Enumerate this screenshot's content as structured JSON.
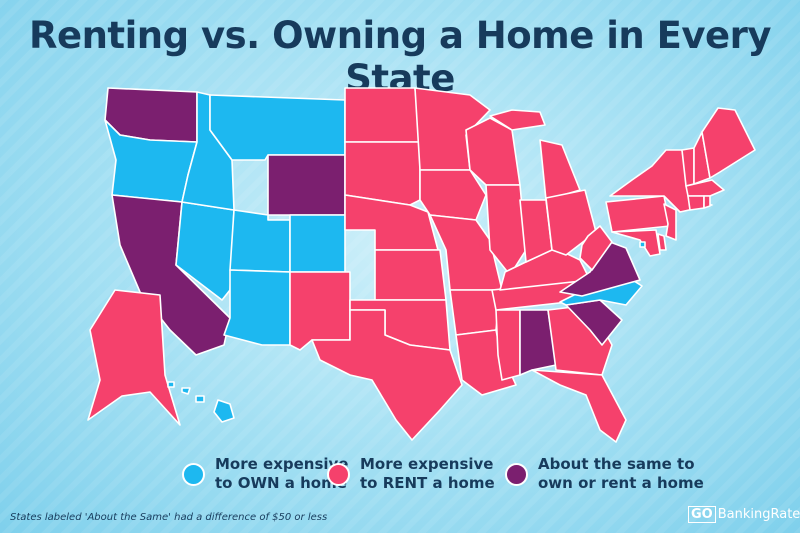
{
  "title": "Renting vs. Owning a Home in Every State",
  "colors": {
    "own": "#1db8f0",
    "rent": "#f5416c",
    "same": "#7b1f6f"
  },
  "legend": [
    {
      "key": "own",
      "label": "More expensive\nto OWN a home"
    },
    {
      "key": "rent",
      "label": "More expensive\nto RENT a home"
    },
    {
      "key": "same",
      "label": "About the same to\nown or rent a home"
    }
  ],
  "states": {
    "WA": "same",
    "OR": "own",
    "CA": "same",
    "NV": "own",
    "ID": "own",
    "MT": "own",
    "WY": "same",
    "UT": "own",
    "CO": "own",
    "AZ": "own",
    "NM": "rent",
    "ND": "rent",
    "SD": "rent",
    "NE": "rent",
    "KS": "rent",
    "OK": "rent",
    "TX": "rent",
    "MN": "rent",
    "IA": "rent",
    "MO": "rent",
    "AR": "rent",
    "LA": "rent",
    "WI": "rent",
    "IL": "rent",
    "MS": "rent",
    "AL": "same",
    "TN": "rent",
    "KY": "rent",
    "IN": "rent",
    "MI": "rent",
    "MI_UP": "rent",
    "OH": "rent",
    "GA": "rent",
    "FL": "rent",
    "SC": "same",
    "NC": "own",
    "VA": "same",
    "WV": "rent",
    "PA": "rent",
    "NY": "rent",
    "NJ": "rent",
    "DE": "rent",
    "MD": "rent",
    "DC": "own",
    "VT": "rent",
    "NH": "rent",
    "ME": "rent",
    "MA": "rent",
    "CT": "rent",
    "RI": "rent",
    "AK": "rent",
    "HI": "own"
  },
  "footnote": "States labeled 'About the Same' had a difference of $50 or less",
  "brand": {
    "go": "GO",
    "name": "BankingRates"
  }
}
